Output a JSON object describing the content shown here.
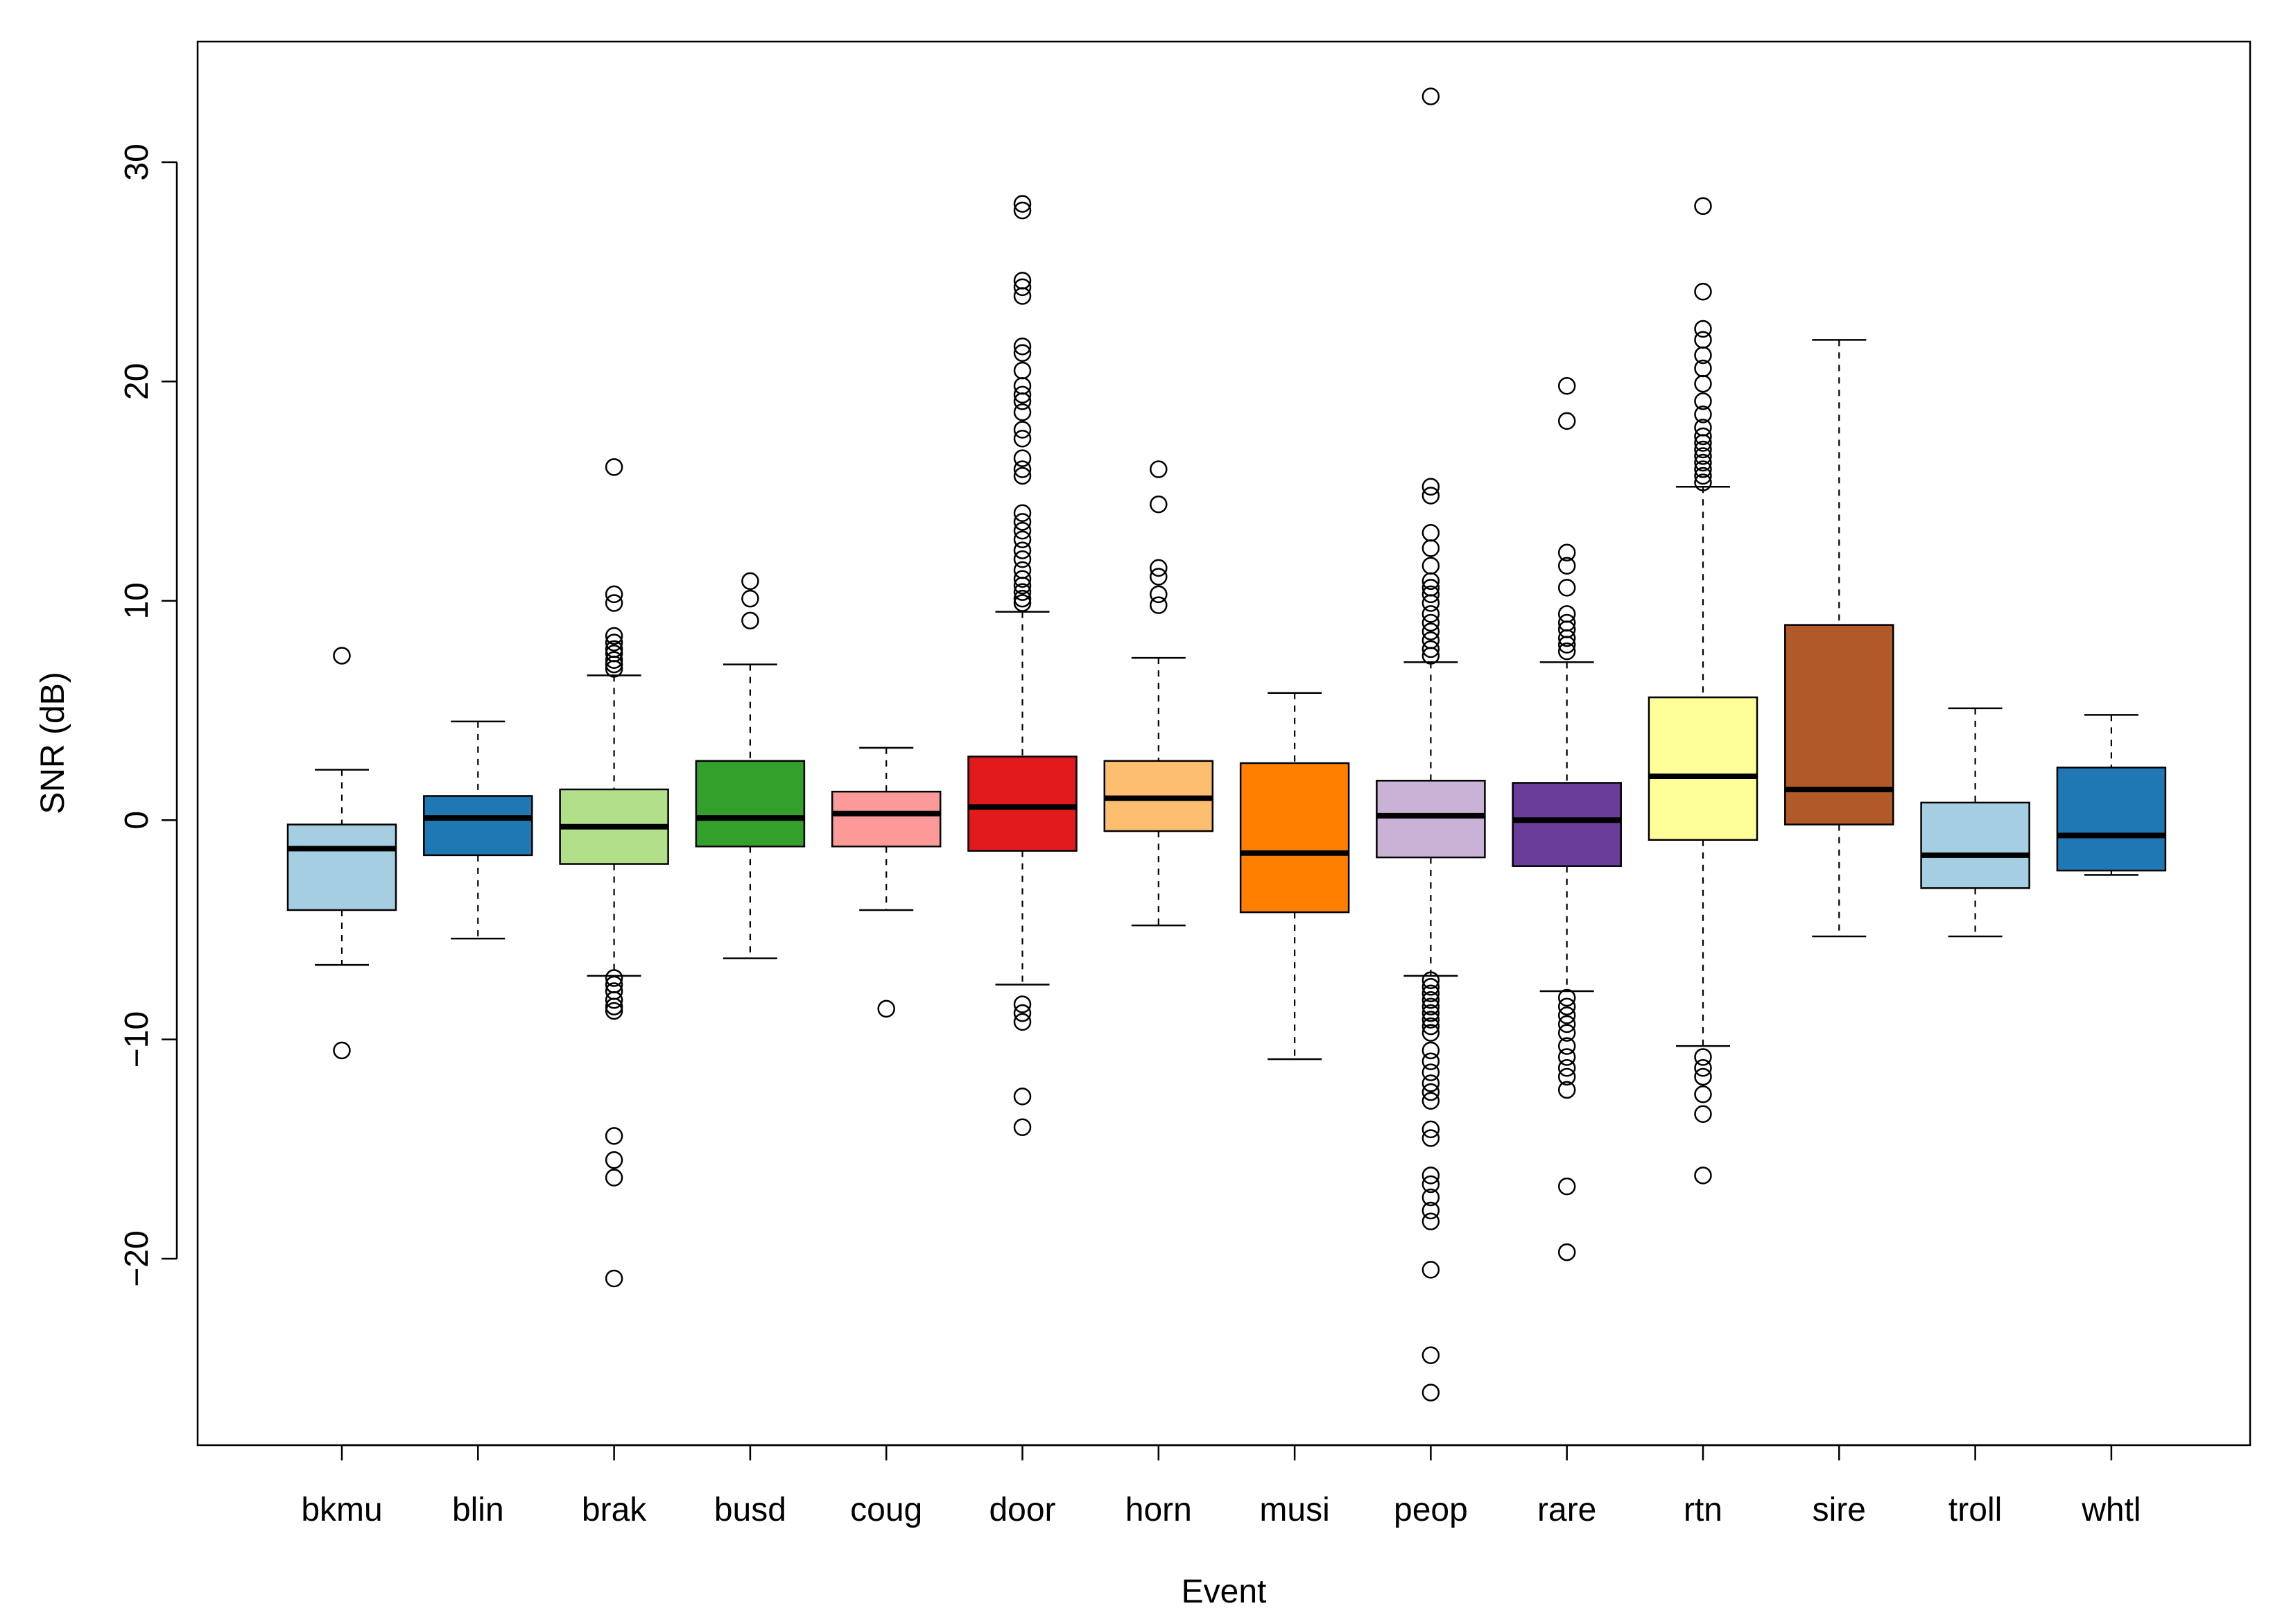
{
  "chart_data": {
    "type": "box",
    "title": "",
    "xlabel": "Event",
    "ylabel": "SNR (dB)",
    "ylim": [
      -28.5,
      35.5
    ],
    "yticks": [
      -20,
      -10,
      0,
      10,
      20,
      30
    ],
    "grid": false,
    "legend": "none",
    "categories": [
      "bkmu",
      "blin",
      "brak",
      "busd",
      "coug",
      "door",
      "horn",
      "musi",
      "peop",
      "rare",
      "rtn",
      "sire",
      "troll",
      "whtl"
    ],
    "series": [
      {
        "category": "bkmu",
        "color": "#a6cee3",
        "whisker_low": -6.6,
        "q1": -4.1,
        "median": -1.3,
        "q3": -0.2,
        "whisker_high": 2.3,
        "outliers": [
          7.5,
          -10.5
        ]
      },
      {
        "category": "blin",
        "color": "#1f78b4",
        "whisker_low": -5.4,
        "q1": -1.6,
        "median": 0.1,
        "q3": 1.1,
        "whisker_high": 4.5,
        "outliers": []
      },
      {
        "category": "brak",
        "color": "#b2df8a",
        "whisker_low": -7.1,
        "q1": -2.0,
        "median": -0.3,
        "q3": 1.4,
        "whisker_high": 6.6,
        "outliers": [
          16.1,
          10.3,
          9.9,
          8.4,
          8.1,
          7.8,
          7.6,
          7.3,
          7.1,
          6.9,
          -7.2,
          -7.5,
          -7.8,
          -8.2,
          -8.5,
          -8.7,
          -14.4,
          -15.5,
          -16.3,
          -20.9
        ]
      },
      {
        "category": "busd",
        "color": "#33a02c",
        "whisker_low": -6.3,
        "q1": -1.2,
        "median": 0.1,
        "q3": 2.7,
        "whisker_high": 7.1,
        "outliers": [
          10.9,
          10.1,
          9.1
        ]
      },
      {
        "category": "coug",
        "color": "#fb9a99",
        "whisker_low": -4.1,
        "q1": -1.2,
        "median": 0.3,
        "q3": 1.3,
        "whisker_high": 3.3,
        "outliers": [
          -8.6
        ]
      },
      {
        "category": "door",
        "color": "#e31a1c",
        "whisker_low": -7.5,
        "q1": -1.4,
        "median": 0.6,
        "q3": 2.9,
        "whisker_high": 9.5,
        "outliers": [
          28.1,
          27.8,
          24.6,
          24.3,
          23.9,
          21.6,
          21.3,
          20.5,
          19.8,
          19.4,
          19.1,
          18.6,
          17.8,
          17.4,
          16.5,
          16.0,
          15.7,
          14.0,
          13.6,
          13.2,
          12.8,
          12.3,
          11.9,
          11.4,
          11.0,
          10.7,
          10.4,
          10.1,
          9.9,
          -8.4,
          -8.8,
          -9.2,
          -12.6,
          -14.0
        ]
      },
      {
        "category": "horn",
        "color": "#fdbf6f",
        "whisker_low": -4.8,
        "q1": -0.5,
        "median": 1.0,
        "q3": 2.7,
        "whisker_high": 7.4,
        "outliers": [
          16.0,
          14.4,
          11.5,
          11.1,
          10.3,
          9.8
        ]
      },
      {
        "category": "musi",
        "color": "#ff7f00",
        "whisker_low": -10.9,
        "q1": -4.2,
        "median": -1.5,
        "q3": 2.6,
        "whisker_high": 5.8,
        "outliers": []
      },
      {
        "category": "peop",
        "color": "#cab2d6",
        "whisker_low": -7.1,
        "q1": -1.7,
        "median": 0.2,
        "q3": 1.8,
        "whisker_high": 7.2,
        "outliers": [
          33.0,
          15.2,
          14.8,
          13.1,
          12.4,
          11.6,
          10.9,
          10.6,
          10.3,
          9.9,
          9.4,
          9.0,
          8.6,
          8.2,
          7.8,
          7.5,
          -7.3,
          -7.6,
          -7.9,
          -8.2,
          -8.5,
          -8.8,
          -9.1,
          -9.4,
          -9.7,
          -10.5,
          -11.0,
          -11.5,
          -12.0,
          -12.4,
          -12.8,
          -14.1,
          -14.5,
          -16.2,
          -16.6,
          -17.2,
          -17.8,
          -18.3,
          -20.5,
          -24.4,
          -26.1
        ]
      },
      {
        "category": "rare",
        "color": "#6a3d9a",
        "whisker_low": -7.8,
        "q1": -2.1,
        "median": 0.0,
        "q3": 1.7,
        "whisker_high": 7.2,
        "outliers": [
          19.8,
          18.2,
          12.2,
          11.6,
          10.6,
          9.4,
          9.0,
          8.7,
          8.3,
          8.0,
          7.7,
          -8.1,
          -8.5,
          -8.9,
          -9.3,
          -9.7,
          -10.3,
          -10.8,
          -11.3,
          -11.7,
          -12.3,
          -16.7,
          -19.7
        ]
      },
      {
        "category": "rtn",
        "color": "#ffff99",
        "whisker_low": -10.3,
        "q1": -0.9,
        "median": 2.0,
        "q3": 5.6,
        "whisker_high": 15.2,
        "outliers": [
          28.0,
          24.1,
          22.4,
          21.9,
          21.2,
          20.6,
          19.9,
          19.1,
          18.5,
          17.9,
          17.5,
          17.2,
          16.9,
          16.6,
          16.3,
          16.0,
          15.7,
          15.4,
          -10.8,
          -11.3,
          -11.7,
          -12.5,
          -13.4,
          -16.2
        ]
      },
      {
        "category": "sire",
        "color": "#b15928",
        "whisker_low": -5.3,
        "q1": -0.2,
        "median": 1.4,
        "q3": 8.9,
        "whisker_high": 21.9,
        "outliers": []
      },
      {
        "category": "troll",
        "color": "#a6cee3",
        "whisker_low": -5.3,
        "q1": -3.1,
        "median": -1.6,
        "q3": 0.8,
        "whisker_high": 5.1,
        "outliers": []
      },
      {
        "category": "whtl",
        "color": "#1f78b4",
        "whisker_low": -2.5,
        "q1": -2.3,
        "median": -0.7,
        "q3": 2.4,
        "whisker_high": 4.8,
        "outliers": []
      }
    ]
  }
}
